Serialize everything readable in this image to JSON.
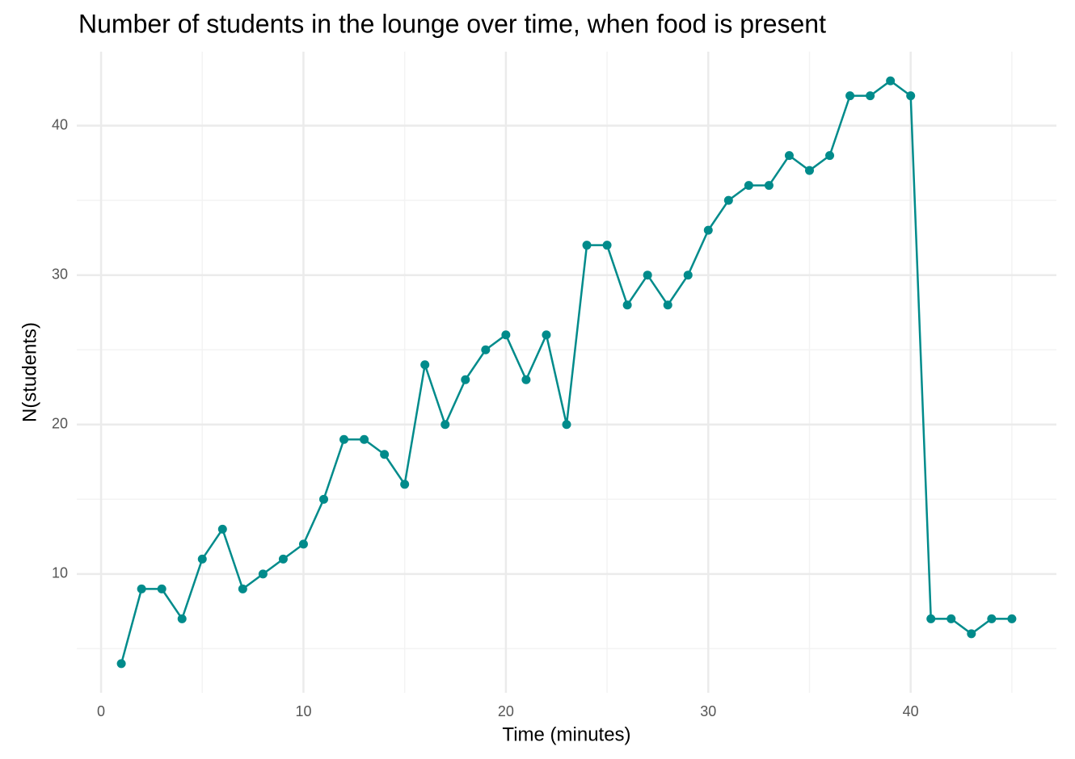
{
  "chart_data": {
    "type": "line",
    "title": "Number of students in the lounge over time, when food is present",
    "x_label": "Time (minutes)",
    "y_label": "N(students)",
    "x": [
      1,
      2,
      3,
      4,
      5,
      6,
      7,
      8,
      9,
      10,
      11,
      12,
      13,
      14,
      15,
      16,
      17,
      18,
      19,
      20,
      21,
      22,
      23,
      24,
      25,
      26,
      27,
      28,
      29,
      30,
      31,
      32,
      33,
      34,
      35,
      36,
      37,
      38,
      39,
      40,
      41,
      42,
      43,
      44,
      45
    ],
    "series": [
      {
        "color": "#008b8b",
        "values": [
          4,
          9,
          9,
          7,
          11,
          13,
          9,
          10,
          11,
          12,
          15,
          19,
          19,
          18,
          16,
          24,
          20,
          23,
          25,
          26,
          23,
          26,
          20,
          32,
          32,
          28,
          30,
          28,
          30,
          33,
          35,
          36,
          36,
          38,
          37,
          38,
          42,
          42,
          43,
          42,
          7,
          7,
          6,
          7,
          7
        ]
      }
    ],
    "xlim": [
      -1.2,
      47.2
    ],
    "ylim": [
      2.05,
      44.95
    ],
    "xticks": [
      0,
      10,
      20,
      30,
      40
    ],
    "yticks": [
      10,
      20,
      30,
      40
    ],
    "x_minor_grid": [
      5,
      15,
      25,
      35,
      45
    ],
    "y_minor_grid": [
      5,
      15,
      25,
      35
    ],
    "grid": true,
    "markers": true
  }
}
